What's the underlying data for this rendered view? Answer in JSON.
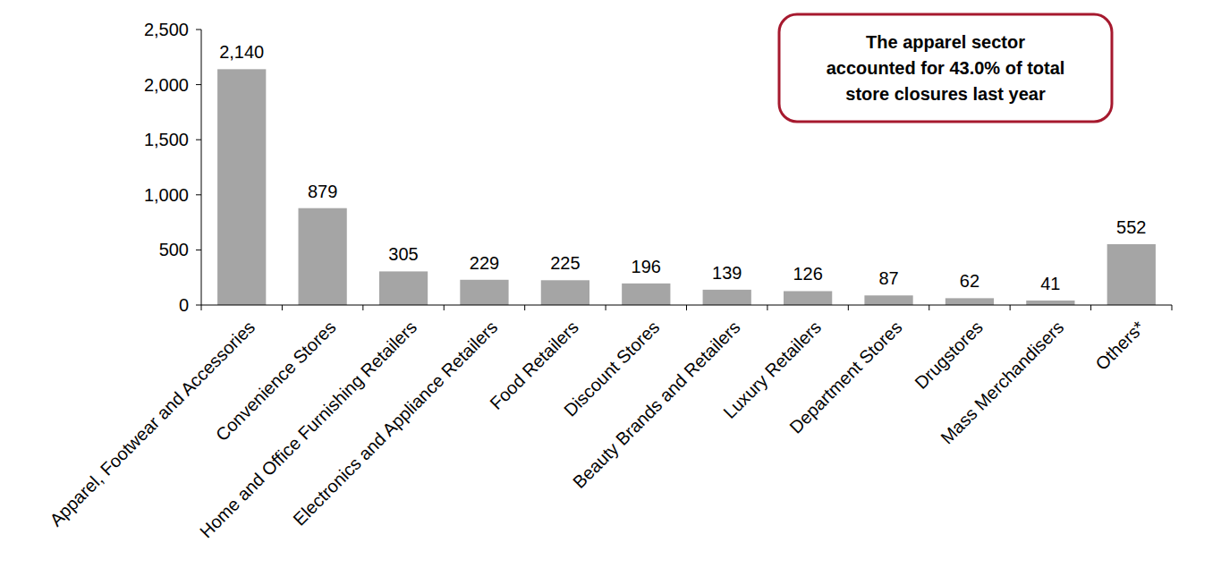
{
  "chart_data": {
    "type": "bar",
    "categories": [
      "Apparel, Footwear and Accessories",
      "Convenience Stores",
      "Home and Office Furnishing Retailers",
      "Electronics and Appliance Retailers",
      "Food Retailers",
      "Discount Stores",
      "Beauty Brands and Retailers",
      "Luxury Retailers",
      "Department Stores",
      "Drugstores",
      "Mass Merchandisers",
      "Others*"
    ],
    "values": [
      2140,
      879,
      305,
      229,
      225,
      196,
      139,
      126,
      87,
      62,
      41,
      552
    ],
    "value_labels": [
      "2,140",
      "879",
      "305",
      "229",
      "225",
      "196",
      "139",
      "126",
      "87",
      "62",
      "41",
      "552"
    ],
    "color": "#a5a5a5",
    "ylim": [
      0,
      2500
    ],
    "yticks": [
      0,
      500,
      {
        "value": 1000,
        "label": "1,000"
      },
      {
        "value": 1500,
        "label": "1,500"
      },
      {
        "value": 2000,
        "label": "2,000"
      },
      {
        "value": 2500,
        "label": "2,500"
      }
    ],
    "grid": false,
    "data_labels": true,
    "annotation": [
      "The apparel sector",
      "accounted for 43.0% of total",
      "store closures last year"
    ]
  }
}
